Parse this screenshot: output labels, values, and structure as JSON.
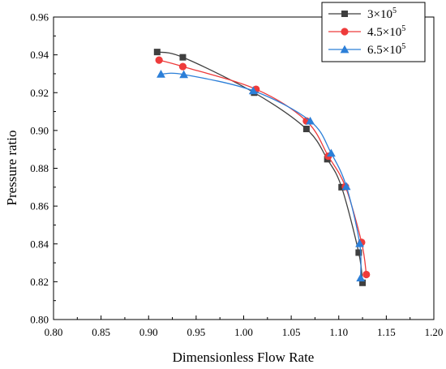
{
  "chart_data": {
    "type": "line",
    "title": "",
    "xlabel": "Dimensionless Flow Rate",
    "ylabel": "Pressure ratio",
    "xlim": [
      0.8,
      1.2
    ],
    "ylim": [
      0.8,
      0.96
    ],
    "x_ticks": [
      0.8,
      0.85,
      0.9,
      0.95,
      1.0,
      1.05,
      1.1,
      1.15,
      1.2
    ],
    "x_tick_labels": [
      "0.80",
      "0.85",
      "0.90",
      "0.95",
      "1.00",
      "1.05",
      "1.10",
      "1.15",
      "1.20"
    ],
    "y_ticks": [
      0.8,
      0.82,
      0.84,
      0.86,
      0.88,
      0.9,
      0.92,
      0.94,
      0.96
    ],
    "y_tick_labels": [
      "0.80",
      "0.82",
      "0.84",
      "0.86",
      "0.88",
      "0.90",
      "0.92",
      "0.94",
      "0.96"
    ],
    "grid": false,
    "legend_position": "top-right",
    "series": [
      {
        "name": "3×10",
        "exponent": "5",
        "color": "#3f3f3f",
        "marker": "square",
        "points": [
          {
            "x": 0.909,
            "y": 0.9415
          },
          {
            "x": 0.936,
            "y": 0.9387
          },
          {
            "x": 1.011,
            "y": 0.92
          },
          {
            "x": 1.066,
            "y": 0.9008
          },
          {
            "x": 1.088,
            "y": 0.8848
          },
          {
            "x": 1.103,
            "y": 0.87
          },
          {
            "x": 1.121,
            "y": 0.8354
          },
          {
            "x": 1.125,
            "y": 0.8194
          }
        ]
      },
      {
        "name": "4.5×10",
        "exponent": "5",
        "color": "#ee3b3b",
        "marker": "circle",
        "points": [
          {
            "x": 0.911,
            "y": 0.9372
          },
          {
            "x": 0.936,
            "y": 0.9338
          },
          {
            "x": 1.013,
            "y": 0.9218
          },
          {
            "x": 1.066,
            "y": 0.905
          },
          {
            "x": 1.089,
            "y": 0.8864
          },
          {
            "x": 1.107,
            "y": 0.8703
          },
          {
            "x": 1.124,
            "y": 0.8408
          },
          {
            "x": 1.129,
            "y": 0.8238
          }
        ]
      },
      {
        "name": "6.5×10",
        "exponent": "5",
        "color": "#2c7fd8",
        "marker": "triangle",
        "points": [
          {
            "x": 0.913,
            "y": 0.9298
          },
          {
            "x": 0.937,
            "y": 0.9296
          },
          {
            "x": 1.01,
            "y": 0.921
          },
          {
            "x": 1.07,
            "y": 0.905
          },
          {
            "x": 1.092,
            "y": 0.888
          },
          {
            "x": 1.108,
            "y": 0.8704
          },
          {
            "x": 1.122,
            "y": 0.8402
          },
          {
            "x": 1.123,
            "y": 0.822
          }
        ]
      }
    ]
  }
}
